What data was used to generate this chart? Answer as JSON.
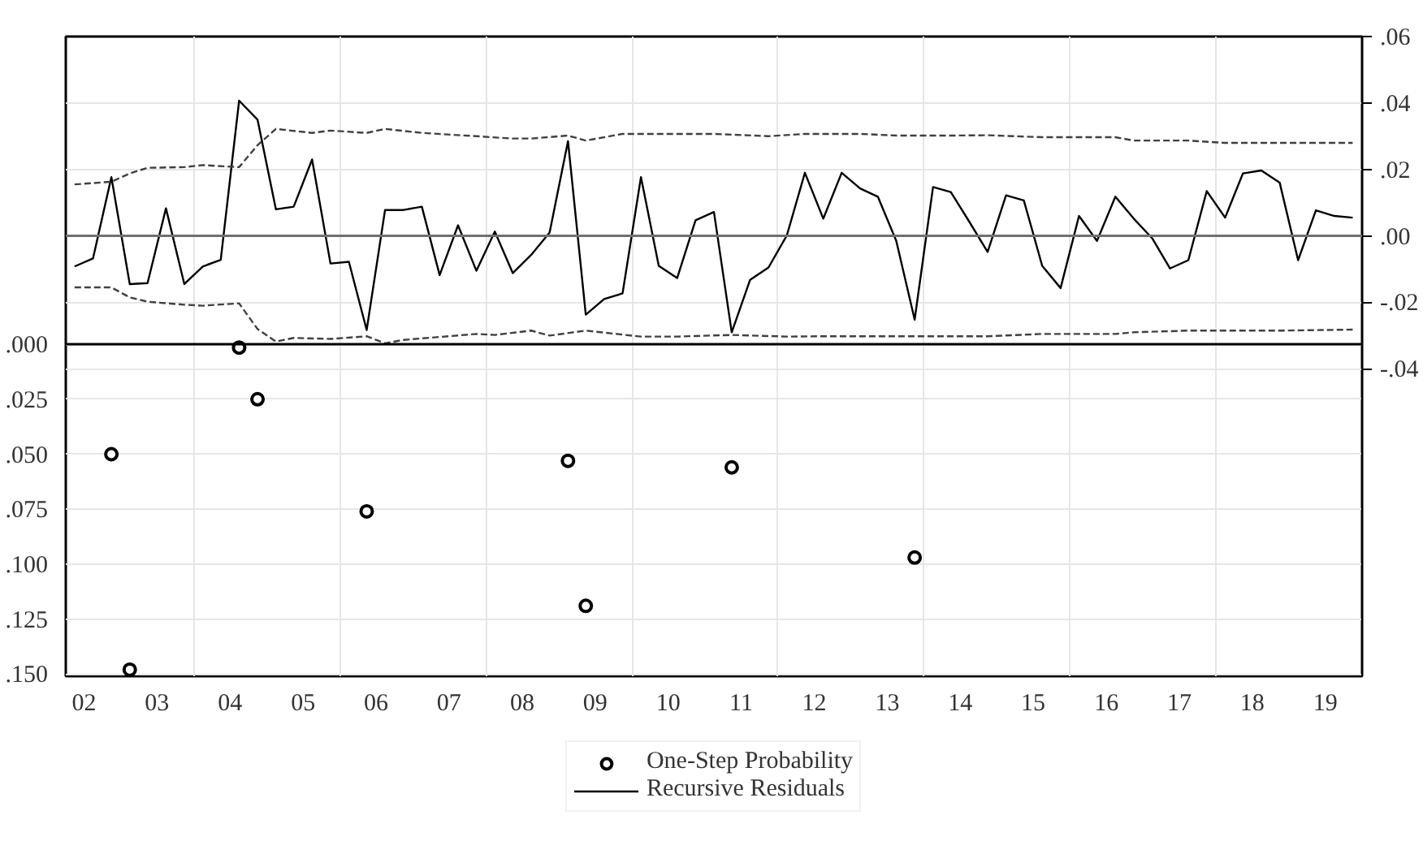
{
  "chart_data": {
    "type": "line",
    "x": [
      "2002-05-15",
      "2002-08-15",
      "2002-11-15",
      "2003-02-15",
      "2003-05-15",
      "2003-08-15",
      "2003-11-15",
      "2004-02-15",
      "2004-05-15",
      "2004-08-15",
      "2004-11-15",
      "2005-02-15",
      "2005-05-15",
      "2005-08-15",
      "2005-11-15",
      "2006-02-15",
      "2006-05-15",
      "2006-08-15",
      "2006-11-15",
      "2007-02-15",
      "2007-05-15",
      "2007-08-15",
      "2007-11-15",
      "2008-02-15",
      "2008-05-15",
      "2008-08-15",
      "2008-11-15",
      "2009-02-15",
      "2009-05-15",
      "2009-08-15",
      "2009-11-15",
      "2010-02-15",
      "2010-05-15",
      "2010-08-15",
      "2010-11-15",
      "2011-02-15",
      "2011-05-15",
      "2011-08-15",
      "2011-11-15",
      "2012-02-15",
      "2012-05-15",
      "2012-08-15",
      "2012-11-15",
      "2013-02-15",
      "2013-05-15",
      "2013-08-15",
      "2013-11-15",
      "2014-02-15",
      "2014-05-15",
      "2014-08-15",
      "2014-11-15",
      "2015-02-15",
      "2015-05-15",
      "2015-08-15",
      "2015-11-15",
      "2016-02-15",
      "2016-05-15",
      "2016-08-15",
      "2016-11-15",
      "2017-02-15",
      "2017-05-15",
      "2017-08-15",
      "2017-11-15",
      "2018-02-15",
      "2018-05-15",
      "2018-08-15",
      "2018-11-15",
      "2019-02-15",
      "2019-05-15",
      "2019-08-15",
      "2019-11-15"
    ],
    "series": [
      {
        "name": "One-Step Probability",
        "type": "scatter",
        "marker": "circle",
        "axis": "y",
        "color": "#000000",
        "x": [
          "2002-11-15",
          "2003-02-15",
          "2004-08-15",
          "2004-11-15",
          "2006-05-15",
          "2009-02-15",
          "2009-05-15",
          "2011-05-15",
          "2013-11-15"
        ],
        "values": [
          0.05,
          0.148,
          0.0015,
          0.025,
          0.076,
          0.053,
          0.119,
          0.056,
          0.097
        ]
      },
      {
        "name": "Recursive Residuals",
        "axis": "y2",
        "color": "#000000",
        "values": [
          -0.0092,
          -0.0068,
          0.0177,
          -0.0145,
          -0.0142,
          0.0083,
          -0.0145,
          -0.0092,
          -0.0072,
          0.0407,
          0.035,
          0.008,
          0.0088,
          0.023,
          -0.0083,
          -0.0078,
          -0.0283,
          0.0078,
          0.0078,
          0.0088,
          -0.0118,
          0.0032,
          -0.0105,
          0.0013,
          -0.0112,
          -0.0057,
          0.001,
          0.0285,
          -0.0237,
          -0.019,
          -0.0173,
          0.0177,
          -0.009,
          -0.0127,
          0.0047,
          0.0072,
          -0.029,
          -0.0132,
          -0.0095,
          0.0002,
          0.019,
          0.0052,
          0.019,
          0.0143,
          0.0118,
          -0.0015,
          -0.0252,
          0.0147,
          0.0132,
          0.0043,
          -0.0048,
          0.0122,
          0.0107,
          -0.009,
          -0.0157,
          0.006,
          -0.0015,
          0.0118,
          0.0052,
          -0.0007,
          -0.0098,
          -0.0073,
          0.0135,
          0.0055,
          0.0188,
          0.0197,
          0.016,
          -0.0073,
          0.0077,
          0.006,
          0.0055
        ]
      },
      {
        "axis": "y2",
        "color": "#404040",
        "line_style": "dashed",
        "x": [
          "2002-05-15",
          "2002-11-15",
          "2003-02-15",
          "2003-05-15",
          "2003-11-15",
          "2004-02-15",
          "2004-08-15",
          "2004-11-15",
          "2005-02-15",
          "2005-08-15",
          "2005-11-15",
          "2006-05-15",
          "2006-08-15",
          "2007-02-15",
          "2007-11-15",
          "2008-05-15",
          "2008-08-15",
          "2009-02-15",
          "2009-05-15",
          "2009-11-15",
          "2011-02-15",
          "2011-11-15",
          "2012-05-15",
          "2013-02-15",
          "2013-08-15",
          "2014-05-15",
          "2014-11-15",
          "2015-08-15",
          "2016-08-15",
          "2016-11-15",
          "2017-08-15",
          "2018-02-15",
          "2019-11-15"
        ],
        "values": [
          0.0155,
          0.0163,
          0.0188,
          0.0205,
          0.0207,
          0.0213,
          0.0207,
          0.0273,
          0.0322,
          0.031,
          0.0317,
          0.031,
          0.0322,
          0.031,
          0.03,
          0.0293,
          0.0293,
          0.0302,
          0.0287,
          0.0307,
          0.0307,
          0.03,
          0.0307,
          0.0307,
          0.0302,
          0.0302,
          0.0303,
          0.0297,
          0.0297,
          0.0287,
          0.0287,
          0.028,
          0.028
        ]
      },
      {
        "axis": "y2",
        "color": "#404040",
        "line_style": "dashed",
        "x": [
          "2002-05-15",
          "2002-11-15",
          "2003-02-15",
          "2003-05-15",
          "2003-11-15",
          "2004-02-15",
          "2004-08-15",
          "2004-11-15",
          "2005-02-15",
          "2005-05-15",
          "2005-11-15",
          "2006-05-15",
          "2006-08-15",
          "2006-11-15",
          "2007-11-15",
          "2008-02-15",
          "2008-08-15",
          "2008-11-15",
          "2009-05-15",
          "2010-02-15",
          "2010-08-15",
          "2011-05-15",
          "2012-02-15",
          "2012-08-15",
          "2014-05-15",
          "2014-11-15",
          "2015-08-15",
          "2016-08-15",
          "2016-11-15",
          "2017-08-15",
          "2018-11-15",
          "2019-11-15"
        ],
        "values": [
          -0.0155,
          -0.0155,
          -0.0185,
          -0.0198,
          -0.0207,
          -0.021,
          -0.0203,
          -0.028,
          -0.0318,
          -0.0307,
          -0.031,
          -0.0302,
          -0.0323,
          -0.0313,
          -0.0295,
          -0.0298,
          -0.0285,
          -0.03,
          -0.0285,
          -0.0303,
          -0.0303,
          -0.0298,
          -0.0303,
          -0.0302,
          -0.0302,
          -0.0302,
          -0.0295,
          -0.0295,
          -0.029,
          -0.0285,
          -0.0285,
          -0.0282
        ]
      }
    ],
    "xlim": [
      "2002-04-01",
      "2020-01-01"
    ],
    "xticks": [
      {
        "value": "2002-07-01",
        "label": "02"
      },
      {
        "value": "2003-07-01",
        "label": "03"
      },
      {
        "value": "2004-07-01",
        "label": "04"
      },
      {
        "value": "2005-07-01",
        "label": "05"
      },
      {
        "value": "2006-07-01",
        "label": "06"
      },
      {
        "value": "2007-07-01",
        "label": "07"
      },
      {
        "value": "2008-07-01",
        "label": "08"
      },
      {
        "value": "2009-07-01",
        "label": "09"
      },
      {
        "value": "2010-07-01",
        "label": "10"
      },
      {
        "value": "2011-07-01",
        "label": "11"
      },
      {
        "value": "2012-07-01",
        "label": "12"
      },
      {
        "value": "2013-07-01",
        "label": "13"
      },
      {
        "value": "2014-07-01",
        "label": "14"
      },
      {
        "value": "2015-07-01",
        "label": "15"
      },
      {
        "value": "2016-07-01",
        "label": "16"
      },
      {
        "value": "2017-07-01",
        "label": "17"
      },
      {
        "value": "2018-07-01",
        "label": "18"
      },
      {
        "value": "2019-07-01",
        "label": "19"
      },
      {
        "value": "2004",
        "label": null
      },
      {
        "value": "2006",
        "label": null
      },
      {
        "value": "2008",
        "label": null
      },
      {
        "value": "2010",
        "label": null
      },
      {
        "value": "2012",
        "label": null
      },
      {
        "value": "2014",
        "label": null
      },
      {
        "value": "2016",
        "label": null
      },
      {
        "value": "2018",
        "label": null
      }
    ],
    "ylim": [
      0.151,
      -0.14
    ],
    "yticks": [
      {
        "value": 0,
        "label": ".000"
      },
      {
        "value": 0.025,
        "label": ".025"
      },
      {
        "value": 0.05,
        "label": ".050"
      },
      {
        "value": 0.075,
        "label": ".075"
      },
      {
        "value": 0.1,
        "label": ".100"
      },
      {
        "value": 0.125,
        "label": ".125"
      },
      {
        "value": 0.15,
        "label": ".150"
      }
    ],
    "y2lim": [
      -0.1325,
      0.06
    ],
    "y2ticks": [
      {
        "value": 0.06,
        "label": ".06"
      },
      {
        "value": 0.04,
        "label": ".04"
      },
      {
        "value": 0.02,
        "label": ".02"
      },
      {
        "value": 0,
        "label": ".00"
      },
      {
        "value": -0.02,
        "label": "-.02"
      },
      {
        "value": -0.04,
        "label": "-.04"
      }
    ],
    "ref_lines": [
      {
        "axis": "y2",
        "value": 0,
        "color": "#707070"
      },
      {
        "axis": "y",
        "value": 0,
        "color": "#000000"
      }
    ],
    "grid": true,
    "legend": "bottom"
  }
}
